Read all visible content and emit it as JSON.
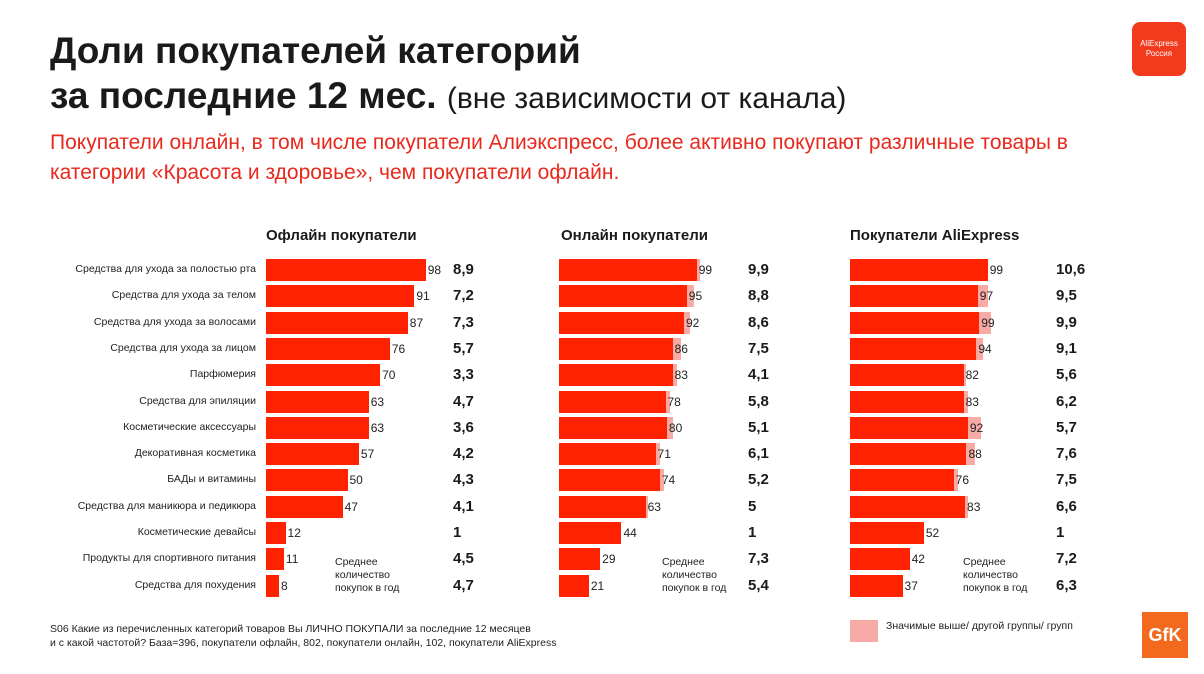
{
  "title_line1": "Доли покупателей категорий",
  "title_line2": "за последние 12 мес.",
  "title_paren": "(вне зависимости от канала)",
  "subtitle": "Покупатели онлайн, в том числе покупатели Алиэкспресс, более активно покупают различные товары в категории «Красота и здоровье», чем покупатели офлайн.",
  "logo_ae_line1": "AliExpress",
  "logo_ae_line2": "Россия",
  "logo_gfk": "GfK",
  "avg_caption": "Среднее количество покупок в год",
  "footnote_line1": "S06 Какие из перечисленных категорий товаров Вы ЛИЧНО ПОКУПАЛИ за последние 12 месяцев",
  "footnote_line2": "и с какой частотой? База=396, покупатели офлайн, 802, покупатели онлайн, 102, покупатели AliExpress",
  "legend_text": "Значимые выше/ другой группы/ групп",
  "colors": {
    "bar": "#ff2200",
    "significant": "#f7aba4",
    "accent": "#e8291d"
  },
  "chart_data": {
    "type": "bar",
    "orientation": "horizontal",
    "categories": [
      "Средства для ухода за полостью рта",
      "Средства для ухода за телом",
      "Средства для ухода за волосами",
      "Средства для ухода за лицом",
      "Парфюмерия",
      "Средства для эпиляции",
      "Косметические аксессуары",
      "Декоративная косметика",
      "БАДы и витамины",
      "Средства для маникюра и педикюра",
      "Косметические девайсы",
      "Продукты для спортивного питания",
      "Средства для похудения"
    ],
    "series": [
      {
        "name": "Офлайн покупатели",
        "values": [
          98,
          91,
          87,
          76,
          70,
          63,
          63,
          57,
          50,
          47,
          12,
          11,
          8
        ],
        "avg_labels": [
          "8,9",
          "7,2",
          "7,3",
          "5,7",
          "3,3",
          "4,7",
          "3,6",
          "4,2",
          "4,3",
          "4,1",
          "1",
          "4,5",
          "4,7"
        ],
        "significant_values": [
          null,
          null,
          null,
          null,
          null,
          null,
          null,
          null,
          null,
          null,
          null,
          null,
          null
        ]
      },
      {
        "name": "Онлайн покупатели",
        "values": [
          97,
          90,
          88,
          80,
          80,
          75,
          76,
          68,
          71,
          61,
          44,
          29,
          21
        ],
        "avg_labels": [
          "9,9",
          "8,8",
          "8,6",
          "7,5",
          "4,1",
          "5,8",
          "5,1",
          "6,1",
          "5,2",
          "5",
          "1",
          "7,3",
          "5,4"
        ],
        "significant_values": [
          99,
          95,
          92,
          86,
          83,
          78,
          80,
          71,
          74,
          63,
          null,
          null,
          null
        ],
        "label_values": [
          99,
          95,
          92,
          86,
          83,
          78,
          80,
          71,
          74,
          63,
          44,
          29,
          21
        ]
      },
      {
        "name": "Покупатели AliExpress",
        "values": [
          97,
          90,
          91,
          89,
          80,
          80,
          83,
          82,
          73,
          81,
          52,
          42,
          37
        ],
        "avg_labels": [
          "10,6",
          "9,5",
          "9,9",
          "9,1",
          "5,6",
          "6,2",
          "5,7",
          "7,6",
          "7,5",
          "6,6",
          "1",
          "7,2",
          "6,3"
        ],
        "significant_values": [
          null,
          97,
          99,
          94,
          82,
          83,
          92,
          88,
          76,
          83,
          null,
          null,
          null
        ],
        "label_values": [
          99,
          97,
          99,
          94,
          82,
          83,
          92,
          88,
          76,
          83,
          52,
          42,
          37
        ]
      }
    ],
    "xlim": [
      0,
      100
    ]
  }
}
